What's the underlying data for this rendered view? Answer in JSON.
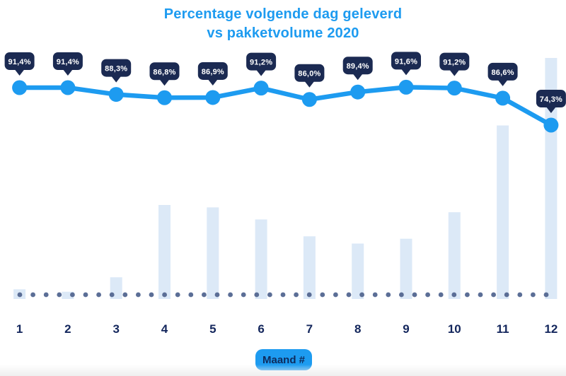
{
  "title": {
    "line1": "Percentage volgende dag geleverd",
    "line2": "vs pakketvolume 2020"
  },
  "xlabel": "Maand #",
  "colors": {
    "accent_blue": "#1D9BF0",
    "badge_navy": "#1B2A52",
    "bar_fill": "#DCE9F7",
    "dot_slate": "#5B6E96",
    "axis_navy": "#13265C",
    "badge_text": "#FFFFFF"
  },
  "chart_data": {
    "type": "line",
    "title": "Percentage volgende dag geleverd vs pakketvolume 2020",
    "categories": [
      "1",
      "2",
      "3",
      "4",
      "5",
      "6",
      "7",
      "8",
      "9",
      "10",
      "11",
      "12"
    ],
    "xlabel": "Maand #",
    "ylabel": "",
    "legend": false,
    "y_axis_shown": false,
    "grid": false,
    "series": [
      {
        "name": "percentage-volgende-dag-geleverd",
        "type": "line",
        "unit": "%",
        "values": [
          91.4,
          91.4,
          88.3,
          86.8,
          86.9,
          91.2,
          86.0,
          89.4,
          91.6,
          91.2,
          86.6,
          74.3
        ],
        "labels": [
          "91,4%",
          "91,4%",
          "88,3%",
          "86,8%",
          "86,9%",
          "91,2%",
          "86,0%",
          "89,4%",
          "91,6%",
          "91,2%",
          "86,6%",
          "74,3%"
        ]
      },
      {
        "name": "pakketvolume",
        "type": "bar",
        "unit": "relative index estimated from bar heights (max month = 100)",
        "values": [
          4,
          3,
          9,
          39,
          38,
          33,
          26,
          23,
          25,
          36,
          72,
          100
        ]
      }
    ]
  }
}
